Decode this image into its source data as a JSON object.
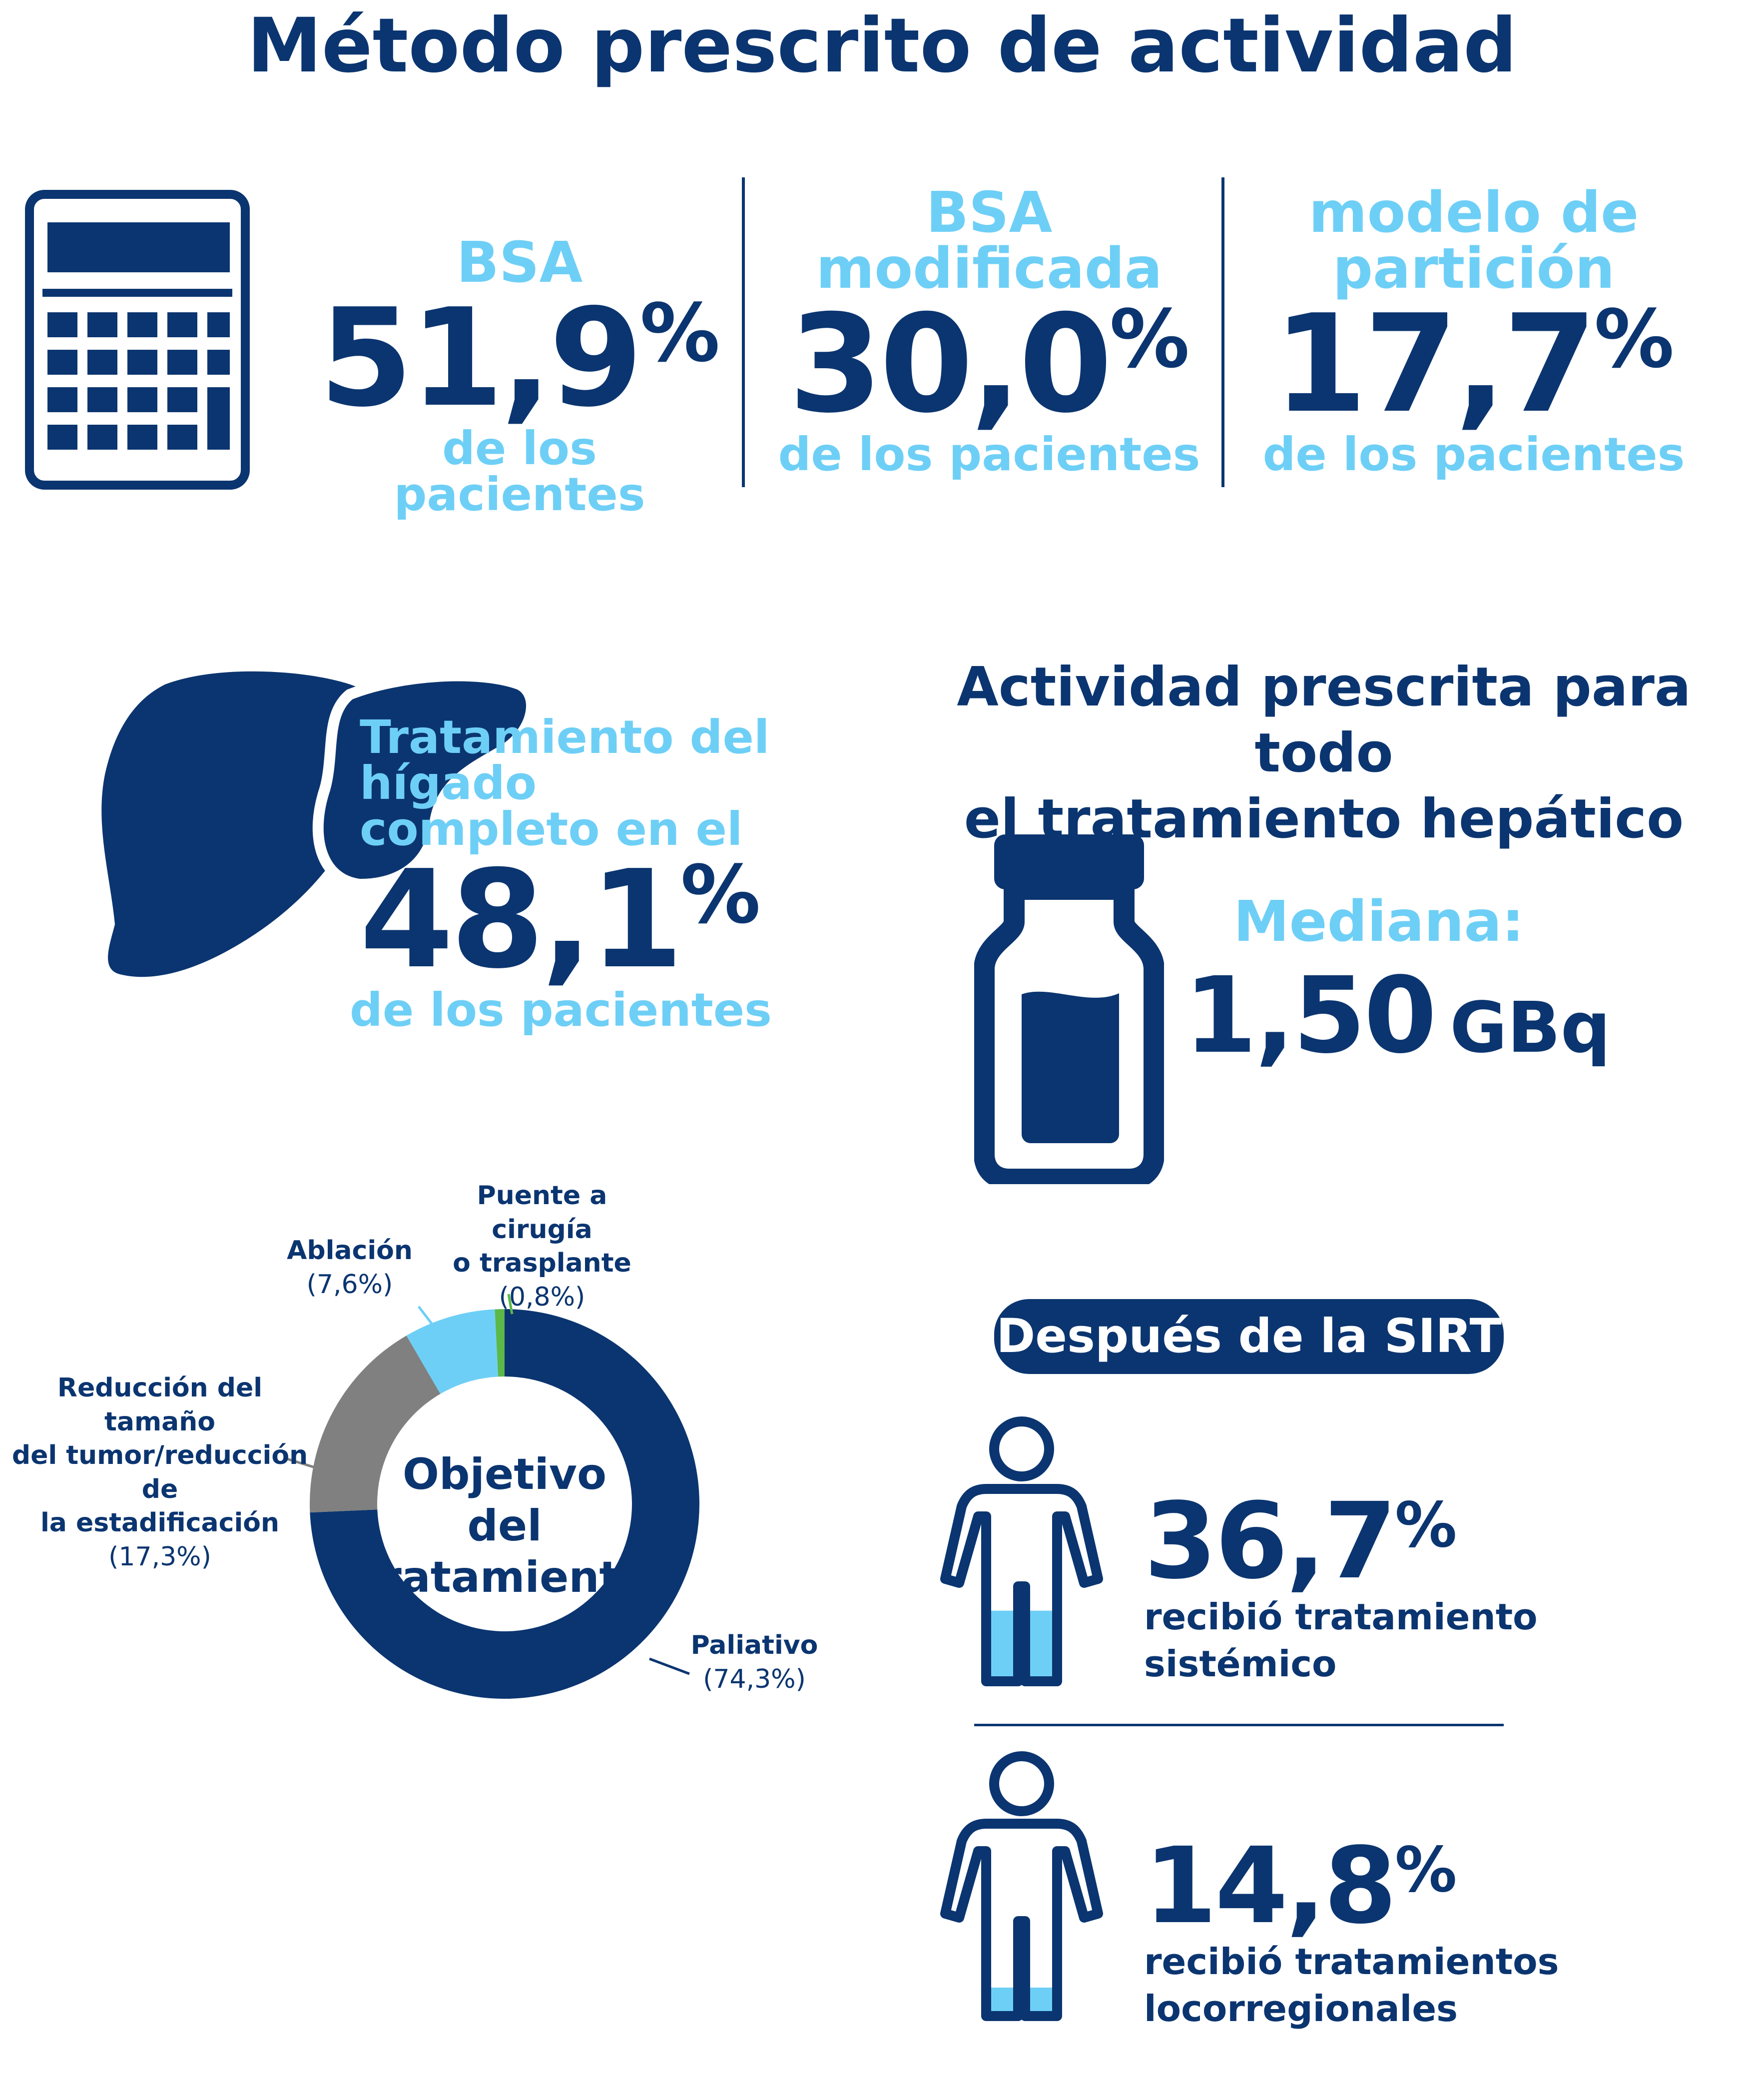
{
  "title": "Método prescrito de actividad",
  "methods": [
    {
      "name_lines": [
        "BSA"
      ],
      "value": "51,9",
      "unit": "%",
      "sub": "de los pacientes"
    },
    {
      "name_lines": [
        "BSA",
        "modificada"
      ],
      "value": "30,0",
      "unit": "%",
      "sub": "de los pacientes"
    },
    {
      "name_lines": [
        "modelo de",
        "partición"
      ],
      "value": "17,7",
      "unit": "%",
      "sub": "de los pacientes"
    }
  ],
  "whole_liver": {
    "label_lines": [
      "Tratamiento del hígado",
      "completo en el"
    ],
    "value": "48,1",
    "unit": "%",
    "sub": "de los pacientes"
  },
  "activity": {
    "title_lines": [
      "Actividad prescrita para todo",
      "el tratamiento hepático"
    ],
    "median_label": "Mediana:",
    "median_value": "1,50",
    "median_unit": "GBq"
  },
  "icons": {
    "calculator": "calculator-icon",
    "liver": "liver-icon",
    "vial": "vial-icon",
    "person": "person-icon"
  },
  "colors": {
    "navy": "#0b3570",
    "light_blue": "#6ecff6",
    "gray": "#808080",
    "green": "#5cb848"
  },
  "chart_data": {
    "type": "pie",
    "variant": "donut",
    "title": "Objetivo del tratamiento",
    "slices": [
      {
        "label_lines": [
          "Paliativo"
        ],
        "pct_label": "(74,3%)",
        "value": 74.3,
        "color": "#0b3570"
      },
      {
        "label_lines": [
          "Reducción del tamaño",
          "del tumor/reducción de",
          "la estadificación"
        ],
        "pct_label": "(17,3%)",
        "value": 17.3,
        "color": "#808080"
      },
      {
        "label_lines": [
          "Ablación"
        ],
        "pct_label": "(7,6%)",
        "value": 7.6,
        "color": "#6ecff6"
      },
      {
        "label_lines": [
          "Puente a cirugía",
          "o trasplante"
        ],
        "pct_label": "(0,8%)",
        "value": 0.8,
        "color": "#5cb848"
      }
    ]
  },
  "after_sirt": {
    "title": "Después de la SIRT",
    "outcomes": [
      {
        "value": "36,7",
        "unit": "%",
        "text_lines": [
          "recibió tratamiento",
          "sistémico"
        ],
        "fill_fraction": 0.367
      },
      {
        "value": "14,8",
        "unit": "%",
        "text_lines": [
          "recibió tratamientos",
          "locorregionales"
        ],
        "fill_fraction": 0.148
      }
    ]
  }
}
